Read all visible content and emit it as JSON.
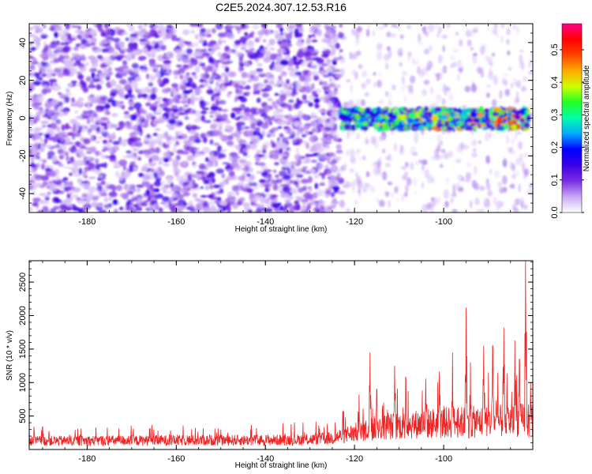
{
  "figure": {
    "title": "C2E5.2024.307.12.53.R16"
  },
  "chart_data": [
    {
      "type": "heatmap",
      "xlabel": "Height of straight line (km)",
      "ylabel": "Frequency (Hz)",
      "xlim": [
        -193,
        -80
      ],
      "ylim": [
        -50,
        50
      ],
      "x_ticks": [
        -180,
        -160,
        -140,
        -120,
        -100
      ],
      "y_ticks": [
        -40,
        -20,
        0,
        20,
        40
      ],
      "colorbar": {
        "label": "Normalized spectral amplitude",
        "range": [
          0.0,
          0.58
        ],
        "ticks": [
          "0.0",
          "0.1",
          "0.2",
          "0.3",
          "0.4",
          "0.5"
        ],
        "colors": [
          "#ffffff",
          "#c9a8f5",
          "#7a2de0",
          "#3b00e8",
          "#0000ff",
          "#00aaff",
          "#00ffaa",
          "#22ff22",
          "#ccff00",
          "#ffaa00",
          "#ff4400",
          "#ff0000",
          "#ff0088"
        ]
      },
      "description_values": {
        "noise_band_x": [
          -193,
          -127
        ],
        "signal_band_x": [
          -123,
          -81
        ],
        "signal_band_frequency_hz": [
          -6,
          5
        ],
        "peak_amplitude": 0.55
      }
    },
    {
      "type": "line",
      "xlabel": "Height of straight line (km)",
      "ylabel": "SNR (10 * v/v)",
      "xlim": [
        -193,
        -80
      ],
      "ylim": [
        0,
        2820
      ],
      "x_ticks": [
        -180,
        -160,
        -140,
        -120,
        -100
      ],
      "y_ticks": [
        500,
        1000,
        1500,
        2000,
        2500
      ],
      "series": [
        {
          "color": "#ee2222",
          "noise_floor": [
            [
              -193,
              150
            ],
            [
              -180,
              155
            ],
            [
              -160,
              160
            ],
            [
              -140,
              165
            ],
            [
              -130,
              175
            ],
            [
              -125,
              200
            ],
            [
              -122,
              260
            ],
            [
              -118,
              330
            ],
            [
              -115,
              380
            ],
            [
              -110,
              420
            ],
            [
              -105,
              450
            ],
            [
              -100,
              470
            ],
            [
              -95,
              480
            ],
            [
              -90,
              490
            ],
            [
              -85,
              500
            ],
            [
              -81,
              520
            ]
          ],
          "spikes": [
            [
              -190,
              340
            ],
            [
              -178,
              330
            ],
            [
              -166,
              310
            ],
            [
              -150,
              300
            ],
            [
              -142,
              320
            ],
            [
              -128,
              360
            ],
            [
              -122,
              480
            ],
            [
              -119,
              820
            ],
            [
              -116.5,
              1450
            ],
            [
              -115,
              900
            ],
            [
              -111,
              1250
            ],
            [
              -108.5,
              1080
            ],
            [
              -104,
              1060
            ],
            [
              -101,
              1160
            ],
            [
              -98,
              1450
            ],
            [
              -95,
              2120
            ],
            [
              -94,
              1300
            ],
            [
              -91,
              1550
            ],
            [
              -89,
              1550
            ],
            [
              -86.5,
              1820
            ],
            [
              -84,
              1630
            ],
            [
              -83,
              1350
            ],
            [
              -81.6,
              2820
            ],
            [
              -80.5,
              1000
            ]
          ]
        }
      ]
    }
  ]
}
